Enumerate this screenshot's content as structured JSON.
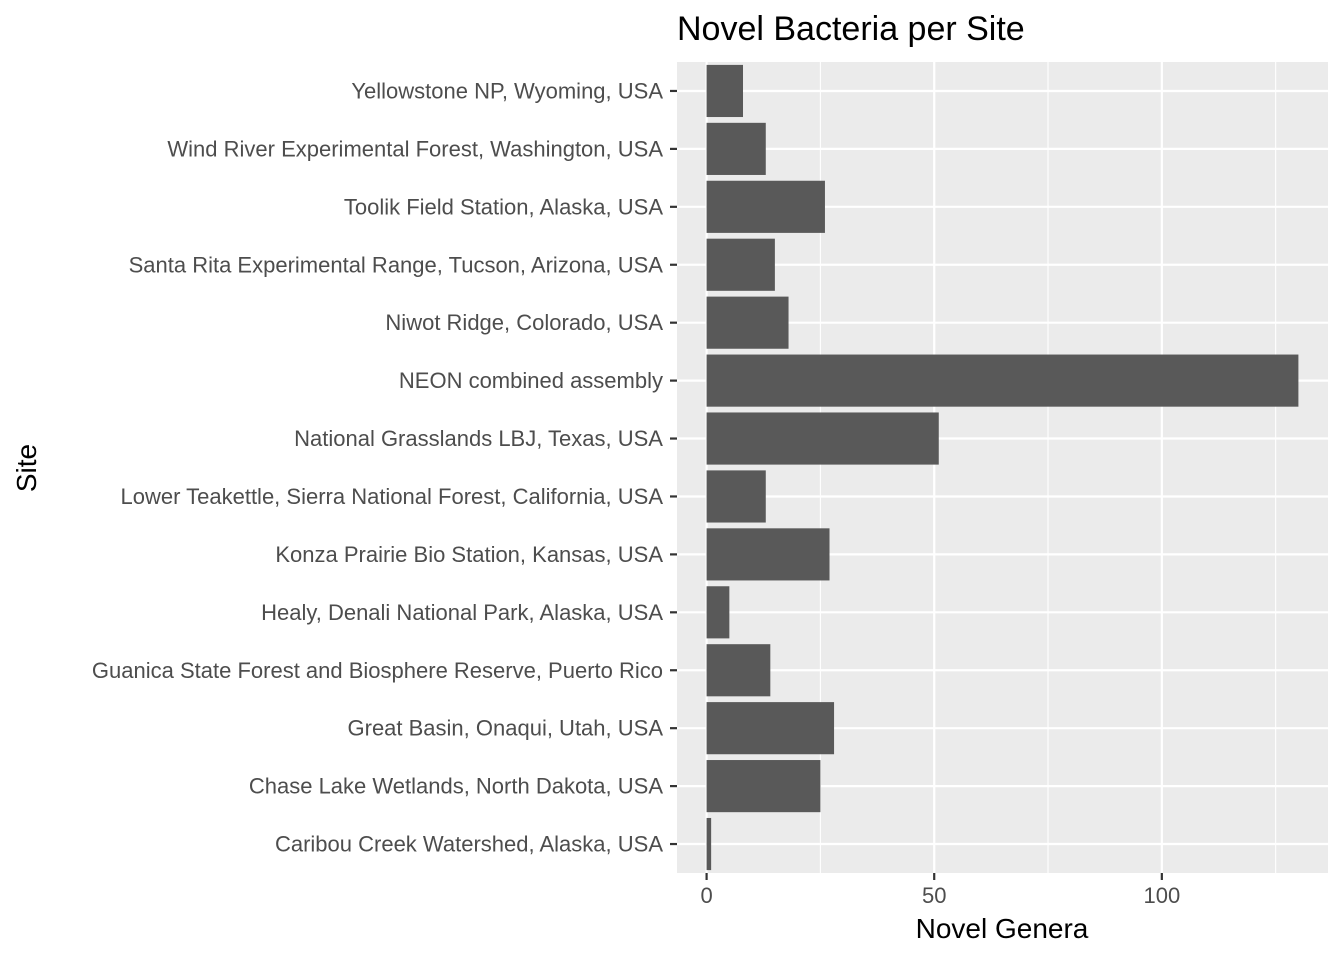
{
  "chart_data": {
    "type": "bar",
    "orientation": "horizontal",
    "title": "Novel Bacteria per Site",
    "xlabel": "Novel Genera",
    "ylabel": "Site",
    "categories": [
      "Yellowstone NP, Wyoming, USA",
      "Wind River Experimental Forest, Washington, USA",
      "Toolik Field Station, Alaska, USA",
      "Santa Rita Experimental Range, Tucson, Arizona, USA",
      "Niwot Ridge, Colorado, USA",
      "NEON combined assembly",
      "National Grasslands LBJ, Texas, USA",
      "Lower Teakettle, Sierra National Forest, California, USA",
      "Konza Prairie Bio Station, Kansas, USA",
      "Healy, Denali National Park, Alaska, USA",
      "Guanica State Forest and Biosphere Reserve, Puerto Rico",
      "Great Basin, Onaqui, Utah, USA",
      "Chase Lake Wetlands, North Dakota, USA",
      "Caribou Creek Watershed, Alaska, USA"
    ],
    "values": [
      8,
      13,
      26,
      15,
      18,
      130,
      51,
      13,
      27,
      5,
      14,
      28,
      25,
      1
    ],
    "xlim": [
      -6.5,
      136.5
    ],
    "xticks": [
      0,
      50,
      100
    ],
    "minor_xticks": [
      25,
      75,
      125
    ],
    "grid": true,
    "legend": "none",
    "colors": {
      "bar": "#595959",
      "panel": "#ebebeb",
      "grid": "#ffffff"
    }
  }
}
